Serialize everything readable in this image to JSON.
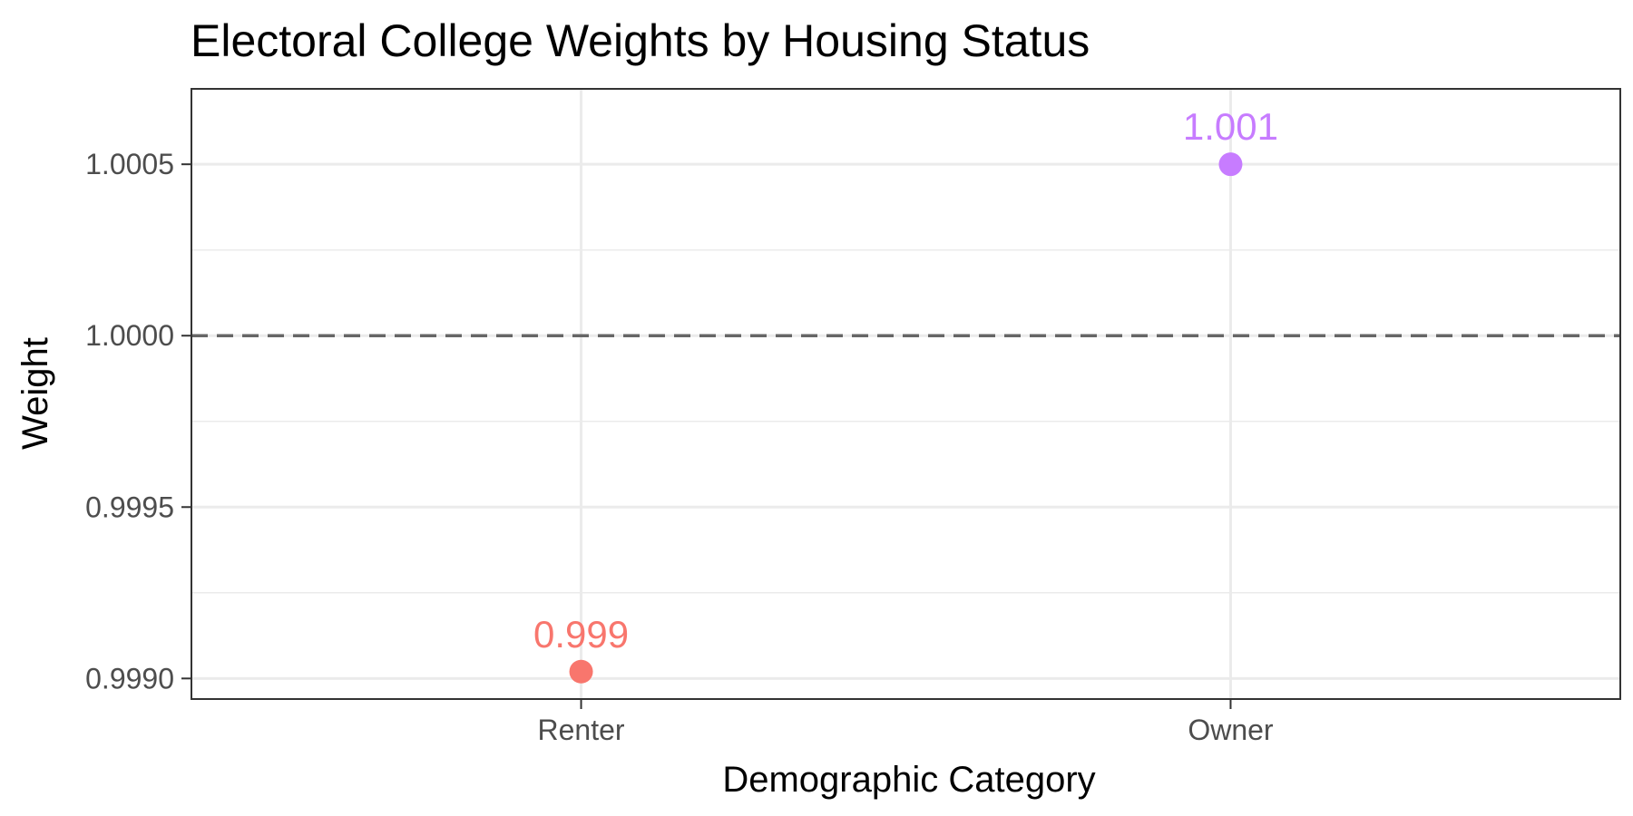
{
  "chart_data": {
    "type": "scatter",
    "title": "Electoral College Weights by Housing Status",
    "xlabel": "Demographic Category",
    "ylabel": "Weight",
    "categories": [
      "Renter",
      "Owner"
    ],
    "values": [
      0.99902,
      1.0005
    ],
    "point_labels": [
      "0.999",
      "1.001"
    ],
    "point_colors": [
      "#F8766D",
      "#C77CFF"
    ],
    "ylim": [
      0.99894,
      1.00072
    ],
    "yticks": [
      0.999,
      0.9995,
      1.0,
      1.0005
    ],
    "ytick_labels": [
      "0.9990",
      "0.9995",
      "1.0000",
      "1.0005"
    ],
    "reference_line": {
      "y": 1.0,
      "style": "dashed",
      "color": "#666666"
    },
    "grid": true,
    "legend": "none"
  }
}
